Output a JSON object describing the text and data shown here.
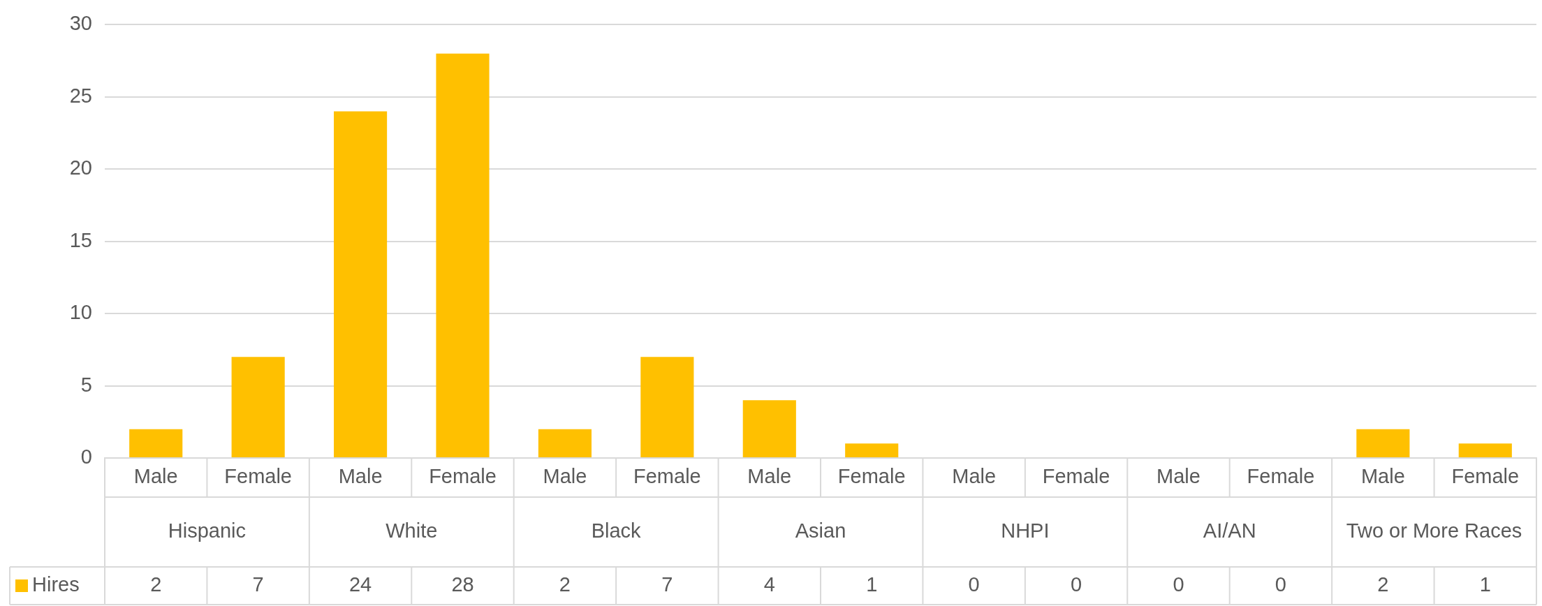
{
  "chart_data": {
    "type": "bar",
    "categories": [
      "Male",
      "Female",
      "Male",
      "Female",
      "Male",
      "Female",
      "Male",
      "Female",
      "Male",
      "Female",
      "Male",
      "Female",
      "Male",
      "Female"
    ],
    "series": [
      {
        "name": "Hires",
        "color": "#ffc000",
        "values": [
          2,
          7,
          24,
          28,
          2,
          7,
          4,
          1,
          0,
          0,
          0,
          0,
          2,
          1
        ]
      }
    ],
    "annotations": [
      "Hispanic",
      "White",
      "Black",
      "Asian",
      "NHPI",
      "AI/AN",
      "Two or More Races"
    ],
    "ylim": [
      0,
      30
    ],
    "yticks": [
      0,
      5,
      10,
      15,
      20,
      25,
      30
    ],
    "grid": "y",
    "legend": "bottom left",
    "data_labels": true
  }
}
